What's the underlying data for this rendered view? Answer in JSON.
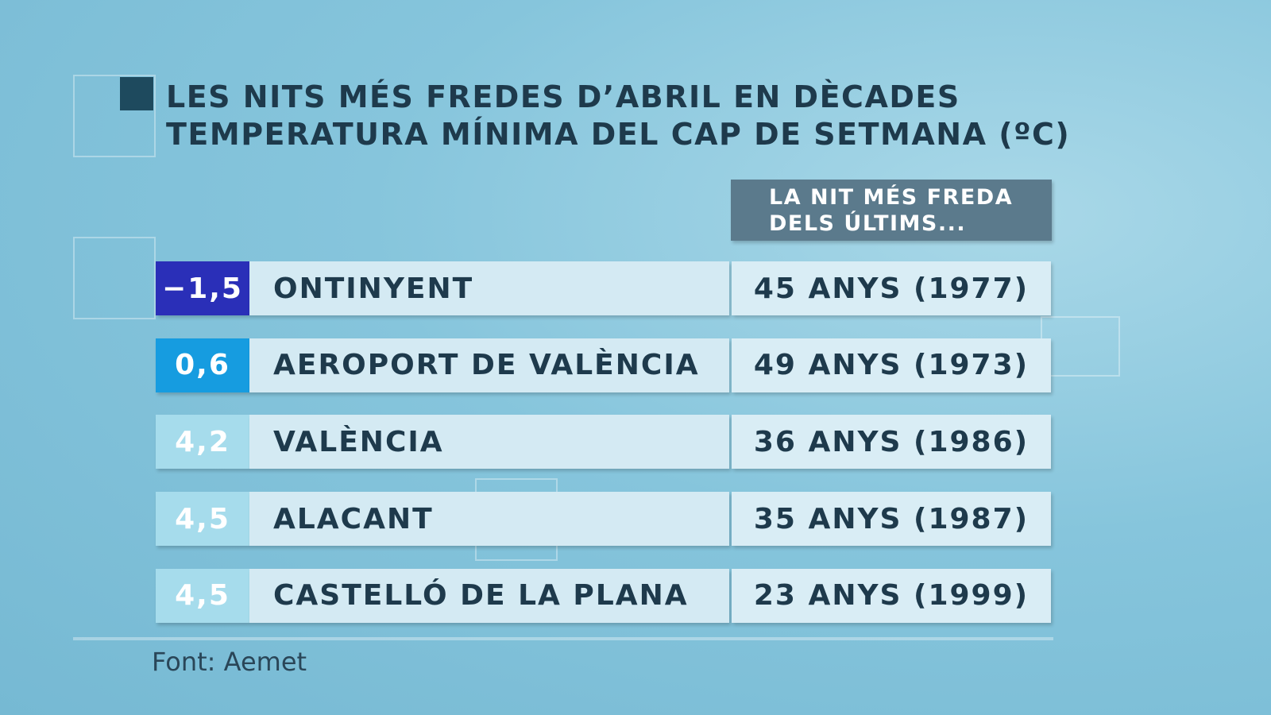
{
  "header": {
    "title": "LES NITS MÉS FREDES D’ABRIL EN DÈCADES",
    "subtitle": "TEMPERATURA MÍNIMA DEL CAP DE SETMANA (ºC)"
  },
  "table": {
    "column_header": [
      "LA NIT MÉS FREDA",
      "DELS ÚLTIMS..."
    ],
    "rows": [
      {
        "value": "−1,5",
        "station": "ONTINYENT",
        "record": "45 ANYS (1977)",
        "color": "#2a2fb8"
      },
      {
        "value": "0,6",
        "station": "AEROPORT DE VALÈNCIA",
        "record": "49 ANYS (1973)",
        "color": "#169ce0"
      },
      {
        "value": "4,2",
        "station": "VALÈNCIA",
        "record": "36 ANYS (1986)",
        "color": "#a6dcec"
      },
      {
        "value": "4,5",
        "station": "ALACANT",
        "record": "35 ANYS (1987)",
        "color": "#a6dcec"
      },
      {
        "value": "4,5",
        "station": "CASTELLÓ DE LA PLANA",
        "record": "23 ANYS (1999)",
        "color": "#a6dcec"
      }
    ]
  },
  "source": "Font: Aemet"
}
